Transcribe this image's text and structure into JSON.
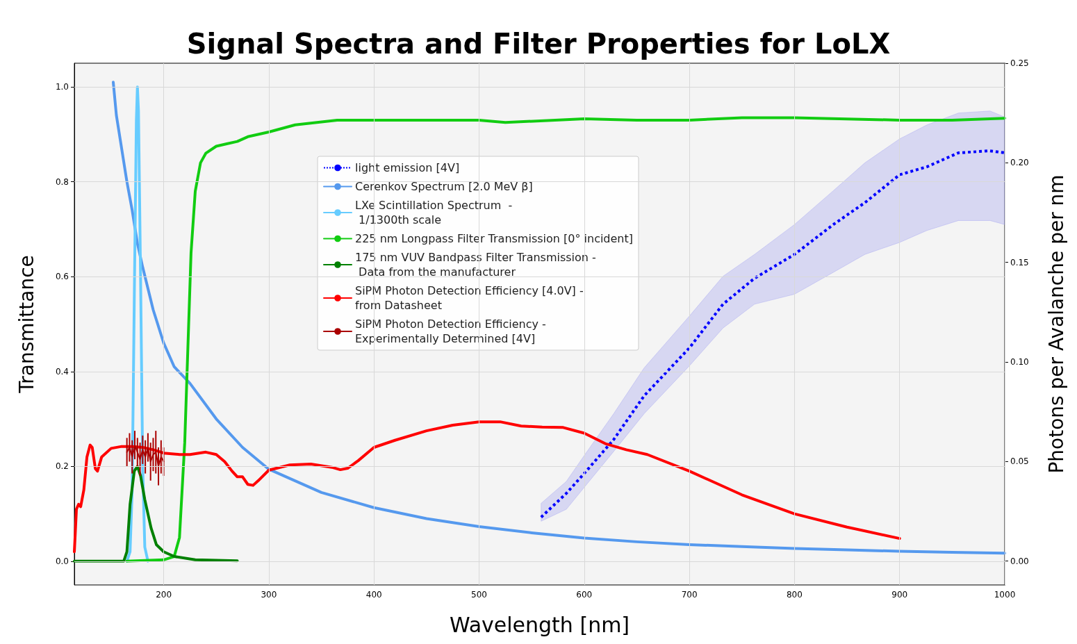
{
  "chart_data": {
    "type": "line",
    "title": "Signal Spectra and Filter Properties for LoLX",
    "xlabel": "Wavelength [nm]",
    "ylabel": "Transmittance",
    "y2label": "Photons per Avalanche per nm",
    "xlim": [
      115,
      1000
    ],
    "ylim": [
      -0.05,
      1.05
    ],
    "y2lim": [
      -0.012,
      0.25
    ],
    "xticks": [
      200,
      300,
      400,
      500,
      600,
      700,
      800,
      900,
      1000
    ],
    "yticks": [
      {
        "value": 0,
        "label": "0.0"
      },
      {
        "value": 0.2,
        "label": "0.2"
      },
      {
        "value": 0.4,
        "label": "0.4"
      },
      {
        "value": 0.6,
        "label": "0.6"
      },
      {
        "value": 0.8,
        "label": "0.8"
      },
      {
        "value": 1,
        "label": "1.0"
      }
    ],
    "y2ticks": [
      {
        "value": 0,
        "label": "0.00"
      },
      {
        "value": 0.05,
        "label": "0.05"
      },
      {
        "value": 0.1,
        "label": "0.10"
      },
      {
        "value": 0.15,
        "label": "0.15"
      },
      {
        "value": 0.2,
        "label": "0.20"
      },
      {
        "value": 0.25,
        "label": "0.25"
      }
    ],
    "grid": true,
    "legend": "top",
    "marker": "none",
    "line_style": "solid",
    "series": [
      {
        "name": "light emission [4V]",
        "color": "#0000ff",
        "axis": "y2",
        "line_style": "dotted",
        "x": [
          559,
          583,
          600,
          628,
          657,
          700,
          732,
          762,
          800,
          837,
          867,
          900,
          926,
          956,
          986,
          1000
        ],
        "values": [
          0.022,
          0.034,
          0.044,
          0.061,
          0.083,
          0.107,
          0.129,
          0.142,
          0.154,
          0.169,
          0.18,
          0.194,
          0.198,
          0.205,
          0.206,
          0.205
        ],
        "lower": [
          0.02,
          0.026,
          0.037,
          0.055,
          0.074,
          0.098,
          0.117,
          0.129,
          0.134,
          0.145,
          0.154,
          0.16,
          0.166,
          0.171,
          0.171,
          0.169
        ],
        "upper": [
          0.029,
          0.04,
          0.053,
          0.074,
          0.097,
          0.123,
          0.143,
          0.154,
          0.169,
          0.186,
          0.2,
          0.212,
          0.219,
          0.225,
          0.226,
          0.223
        ]
      },
      {
        "name": "Cerenkov Spectrum [2.0 MeV β]",
        "color": "#5599ee",
        "x": [
          152,
          155,
          160,
          165,
          170,
          175,
          180,
          190,
          200,
          210,
          225,
          250,
          275,
          300,
          350,
          400,
          450,
          500,
          550,
          600,
          650,
          700,
          750,
          800,
          850,
          900,
          950,
          1000
        ],
        "values": [
          1.01,
          0.94,
          0.87,
          0.8,
          0.74,
          0.67,
          0.62,
          0.53,
          0.46,
          0.41,
          0.375,
          0.3,
          0.24,
          0.194,
          0.145,
          0.113,
          0.09,
          0.073,
          0.06,
          0.049,
          0.041,
          0.035,
          0.031,
          0.027,
          0.024,
          0.021,
          0.019,
          0.017
        ]
      },
      {
        "name": "LXe Scintillation Spectrum  -\n 1/1300th scale",
        "color": "#66ccff",
        "x": [
          165,
          168,
          170,
          172,
          174,
          175,
          176,
          178,
          180,
          182,
          185
        ],
        "values": [
          0,
          0.02,
          0.15,
          0.55,
          0.93,
          1.0,
          0.95,
          0.6,
          0.2,
          0.03,
          0
        ]
      },
      {
        "name": "225 nm Longpass Filter Transmission [0° incident]",
        "color": "#11cc11",
        "x": [
          165,
          200,
          210,
          215,
          220,
          223,
          226,
          230,
          235,
          240,
          250,
          260,
          270,
          280,
          300,
          325,
          365,
          400,
          450,
          500,
          525,
          600,
          650,
          700,
          750,
          800,
          900,
          950,
          1000
        ],
        "values": [
          0,
          0.003,
          0.01,
          0.05,
          0.25,
          0.45,
          0.65,
          0.78,
          0.84,
          0.86,
          0.875,
          0.88,
          0.885,
          0.895,
          0.905,
          0.92,
          0.93,
          0.93,
          0.93,
          0.93,
          0.925,
          0.933,
          0.93,
          0.93,
          0.935,
          0.935,
          0.93,
          0.93,
          0.934
        ]
      },
      {
        "name": "175 nm VUV Bandpass Filter Transmission -\n Data from the manufacturer",
        "color": "#008000",
        "x": [
          115,
          162,
          165,
          168,
          172,
          175,
          178,
          182,
          188,
          193,
          200,
          210,
          230,
          270
        ],
        "values": [
          0,
          0,
          0.02,
          0.12,
          0.19,
          0.2,
          0.18,
          0.13,
          0.07,
          0.035,
          0.02,
          0.01,
          0.003,
          0.001
        ]
      },
      {
        "name": "SiPM Photon Detection Efficiency [4.0V] -\nfrom Datasheet",
        "color": "#ff0000",
        "x": [
          115,
          117,
          119,
          121,
          124,
          127,
          130,
          132,
          135,
          137,
          141,
          150,
          160,
          170,
          180,
          190,
          200,
          215,
          225,
          240,
          250,
          258,
          265,
          270,
          275,
          280,
          285,
          290,
          300,
          320,
          340,
          360,
          368,
          375,
          385,
          400,
          420,
          450,
          475,
          500,
          520,
          540,
          560,
          580,
          600,
          620,
          640,
          660,
          700,
          750,
          800,
          850,
          900
        ],
        "values": [
          0.02,
          0.11,
          0.12,
          0.115,
          0.15,
          0.22,
          0.245,
          0.24,
          0.195,
          0.19,
          0.22,
          0.238,
          0.242,
          0.242,
          0.24,
          0.235,
          0.228,
          0.225,
          0.225,
          0.23,
          0.225,
          0.21,
          0.19,
          0.178,
          0.178,
          0.162,
          0.16,
          0.17,
          0.192,
          0.203,
          0.205,
          0.198,
          0.193,
          0.196,
          0.212,
          0.24,
          0.255,
          0.275,
          0.287,
          0.294,
          0.294,
          0.285,
          0.283,
          0.282,
          0.27,
          0.248,
          0.235,
          0.225,
          0.19,
          0.14,
          0.1,
          0.072,
          0.048
        ]
      },
      {
        "name": "SiPM Photon Detection Efficiency -\nExperimentally Determined [4V]",
        "color": "#aa0000",
        "x": [
          165,
          167.5,
          170,
          172.5,
          175,
          177.5,
          180,
          182.5,
          185,
          187.5,
          190,
          192.5,
          195,
          197.5,
          200
        ],
        "values": [
          0.23,
          0.24,
          0.22,
          0.245,
          0.23,
          0.215,
          0.235,
          0.22,
          0.24,
          0.21,
          0.225,
          0.23,
          0.2,
          0.22,
          0.21
        ],
        "errors": [
          0.03,
          0.03,
          0.035,
          0.03,
          0.03,
          0.035,
          0.03,
          0.035,
          0.03,
          0.04,
          0.035,
          0.045,
          0.04,
          0.035,
          0.03
        ]
      }
    ]
  }
}
